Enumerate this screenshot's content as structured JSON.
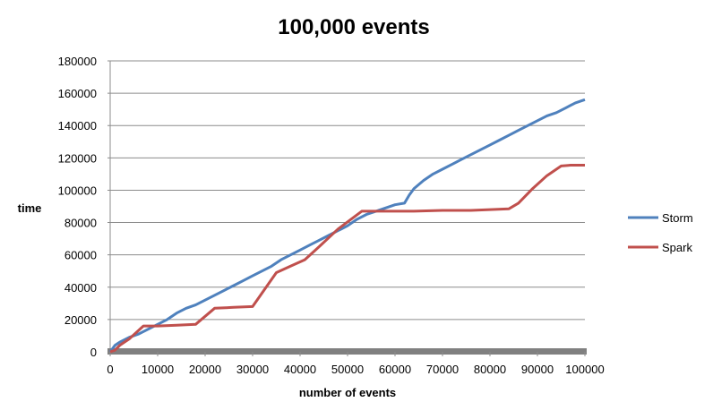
{
  "chart_data": {
    "type": "line",
    "title": "100,000 events",
    "xlabel": "number of events",
    "ylabel": "time",
    "xlim": [
      0,
      100000
    ],
    "ylim": [
      0,
      180000
    ],
    "x_ticks": [
      0,
      10000,
      20000,
      30000,
      40000,
      50000,
      60000,
      70000,
      80000,
      90000,
      100000
    ],
    "y_ticks": [
      0,
      20000,
      40000,
      60000,
      80000,
      100000,
      120000,
      140000,
      160000,
      180000
    ],
    "grid": "horizontal",
    "legend_position": "right",
    "series": [
      {
        "name": "Storm",
        "color": "#4f81bd",
        "x": [
          0,
          1000,
          2000,
          4000,
          6000,
          8000,
          10000,
          12000,
          14000,
          16000,
          18000,
          20000,
          22000,
          24000,
          26000,
          28000,
          30000,
          32000,
          34000,
          36000,
          38000,
          40000,
          42000,
          44000,
          46000,
          48000,
          50000,
          52000,
          54000,
          56000,
          58000,
          60000,
          62000,
          63000,
          64000,
          66000,
          68000,
          70000,
          72000,
          74000,
          76000,
          78000,
          80000,
          82000,
          84000,
          86000,
          88000,
          90000,
          92000,
          94000,
          96000,
          98000,
          100000
        ],
        "y": [
          0,
          4000,
          6000,
          9000,
          11000,
          14000,
          17000,
          20000,
          24000,
          27000,
          29000,
          32000,
          35000,
          38000,
          41000,
          44000,
          47000,
          50000,
          53000,
          57000,
          60000,
          63000,
          66000,
          69000,
          72000,
          75000,
          78000,
          82000,
          85000,
          87000,
          89000,
          91000,
          92000,
          97000,
          101000,
          106000,
          110000,
          113000,
          116000,
          119000,
          122000,
          125000,
          128000,
          131000,
          134000,
          137000,
          140000,
          143000,
          146000,
          148000,
          151000,
          154000,
          156000
        ]
      },
      {
        "name": "Spark",
        "color": "#c0504d",
        "x": [
          0,
          1000,
          2000,
          4000,
          7000,
          10000,
          14000,
          18000,
          22000,
          26000,
          30000,
          35000,
          38000,
          41000,
          44000,
          48000,
          53000,
          56000,
          60000,
          64000,
          70000,
          76000,
          80000,
          84000,
          86000,
          89000,
          92000,
          95000,
          97000,
          100000
        ],
        "y": [
          0,
          1000,
          4000,
          8000,
          16000,
          16000,
          16500,
          17000,
          27000,
          27500,
          28000,
          49000,
          53000,
          57000,
          65000,
          76000,
          87000,
          87000,
          87000,
          87000,
          87500,
          87500,
          88000,
          88500,
          92000,
          101000,
          109000,
          115000,
          115500,
          115500
        ]
      }
    ]
  }
}
